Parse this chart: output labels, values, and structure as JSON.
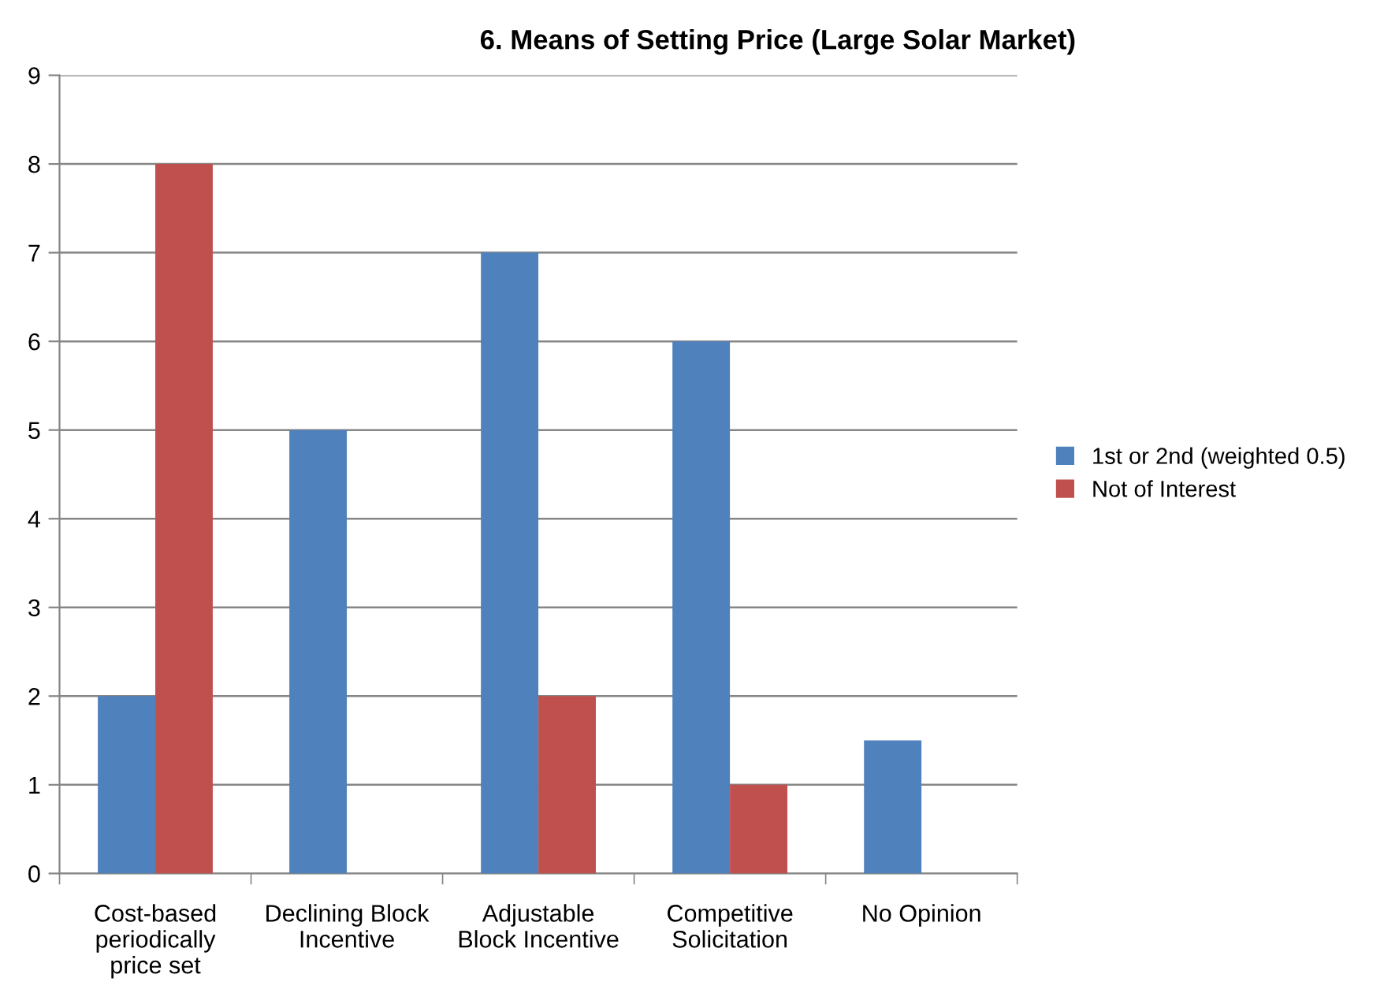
{
  "chart_data": {
    "type": "bar",
    "title": "6. Means of Setting Price (Large Solar Market)",
    "categories": [
      "Cost-based\nperiodically\nprice set",
      "Declining Block\nIncentive",
      "Adjustable\nBlock Incentive",
      "Competitive\nSolicitation",
      "No Opinion"
    ],
    "series": [
      {
        "name": "1st or 2nd (weighted 0.5)",
        "color": "#4f81bd",
        "values": [
          2,
          5,
          7,
          6,
          1.5
        ]
      },
      {
        "name": "Not of Interest",
        "color": "#c0504d",
        "values": [
          8,
          0,
          2,
          1,
          0
        ]
      }
    ],
    "ylim": [
      0,
      9
    ],
    "yticks": [
      0,
      1,
      2,
      3,
      4,
      5,
      6,
      7,
      8,
      9
    ],
    "grid": "y",
    "legend": "right"
  }
}
